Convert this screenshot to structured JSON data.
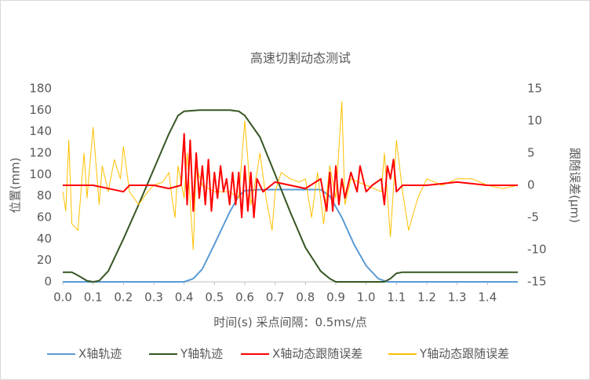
{
  "chart_data": {
    "type": "line",
    "title": "高速切割动态测试",
    "xlabel": "时间(s)    采点间隔：0.5ms/点",
    "ylabel": "位置(mm)",
    "y2label": "跟随误差(μm)",
    "xlim": [
      0,
      1.5
    ],
    "xticks": [
      {
        "value": 0,
        "label": "0.0"
      },
      0.1,
      0.2,
      0.3,
      0.4,
      0.5,
      0.6,
      0.7,
      0.8,
      0.9,
      {
        "value": 1,
        "label": "1.0"
      },
      1.1,
      1.2,
      1.3,
      1.4
    ],
    "ylim": [
      0,
      180
    ],
    "yticks": [
      0,
      20,
      40,
      60,
      80,
      100,
      120,
      140,
      160,
      180
    ],
    "y2lim": [
      -15,
      15
    ],
    "y2ticks": [
      -15,
      -10,
      -5,
      0,
      5,
      10,
      15
    ],
    "grid": false,
    "legend": "bottom",
    "series": [
      {
        "name": "X轴轨迹",
        "color": "#5b9bd5",
        "x": [
          0,
          0.4,
          0.43,
          0.46,
          0.5,
          0.55,
          0.58,
          0.6,
          0.65,
          0.85,
          0.88,
          0.92,
          0.96,
          1.0,
          1.04,
          1.07,
          1.5
        ],
        "values": [
          0,
          0,
          3,
          12,
          35,
          65,
          80,
          85,
          86,
          86,
          80,
          60,
          35,
          15,
          3,
          0,
          0
        ]
      },
      {
        "name": "Y轴轨迹",
        "color": "#375623",
        "x": [
          0,
          0.03,
          0.05,
          0.08,
          0.1,
          0.12,
          0.15,
          0.2,
          0.25,
          0.3,
          0.35,
          0.38,
          0.4,
          0.45,
          0.55,
          0.58,
          0.6,
          0.65,
          0.7,
          0.75,
          0.8,
          0.85,
          0.88,
          0.9,
          1.06,
          1.08,
          1.1,
          1.12,
          1.5
        ],
        "values": [
          9,
          9,
          6,
          1,
          0,
          1,
          10,
          40,
          72,
          105,
          138,
          155,
          159,
          160,
          160,
          159,
          155,
          135,
          100,
          65,
          32,
          10,
          3,
          0,
          0,
          3,
          8,
          9,
          9
        ]
      },
      {
        "name": "X轴动态跟随误差",
        "color": "#ff0000",
        "axis": "y2",
        "x": [
          0,
          0.1,
          0.2,
          0.22,
          0.3,
          0.35,
          0.39,
          0.4,
          0.41,
          0.42,
          0.43,
          0.44,
          0.45,
          0.46,
          0.47,
          0.48,
          0.49,
          0.5,
          0.51,
          0.52,
          0.53,
          0.54,
          0.55,
          0.56,
          0.57,
          0.58,
          0.59,
          0.6,
          0.61,
          0.62,
          0.63,
          0.64,
          0.66,
          0.7,
          0.75,
          0.8,
          0.85,
          0.87,
          0.88,
          0.89,
          0.9,
          0.91,
          0.92,
          0.93,
          0.95,
          0.97,
          0.98,
          1.0,
          1.02,
          1.05,
          1.06,
          1.07,
          1.08,
          1.09,
          1.1,
          1.12,
          1.2,
          1.3,
          1.4,
          1.5
        ],
        "values": [
          0,
          0,
          -1,
          0,
          0,
          -0.5,
          0,
          8,
          -3,
          7,
          -4,
          5,
          -2,
          3,
          -3,
          4,
          -4,
          2,
          -2,
          3,
          -1,
          1,
          -3,
          2,
          -3,
          2,
          -5,
          3,
          -4,
          2,
          -5,
          1,
          -1,
          0.5,
          0,
          -0.5,
          1,
          -4,
          2,
          -4,
          3,
          -3,
          1,
          -2,
          2,
          -1,
          3,
          -1,
          0,
          1,
          -3,
          3,
          1,
          4,
          -1,
          0,
          0,
          0.5,
          0,
          0
        ]
      },
      {
        "name": "Y轴动态跟随误差",
        "color": "#ffc000",
        "axis": "y2",
        "x": [
          0,
          0.01,
          0.02,
          0.03,
          0.05,
          0.07,
          0.08,
          0.1,
          0.12,
          0.13,
          0.15,
          0.17,
          0.19,
          0.2,
          0.22,
          0.25,
          0.28,
          0.3,
          0.33,
          0.35,
          0.36,
          0.37,
          0.38,
          0.4,
          0.41,
          0.43,
          0.44,
          0.46,
          0.5,
          0.55,
          0.58,
          0.6,
          0.61,
          0.62,
          0.64,
          0.65,
          0.67,
          0.69,
          0.7,
          0.72,
          0.75,
          0.78,
          0.8,
          0.82,
          0.84,
          0.86,
          0.88,
          0.9,
          0.92,
          0.93,
          0.95,
          1.0,
          1.05,
          1.06,
          1.08,
          1.1,
          1.12,
          1.14,
          1.17,
          1.2,
          1.25,
          1.3,
          1.35,
          1.4,
          1.45,
          1.5
        ],
        "values": [
          -1,
          -4,
          7,
          -6,
          -7,
          5,
          -2,
          9,
          -3,
          3,
          -1,
          4,
          1,
          6,
          -1,
          -3,
          -1,
          0,
          0.5,
          2,
          -2,
          -5,
          3,
          -2,
          5,
          -10,
          3,
          0,
          -1,
          -1,
          -2,
          10,
          4,
          -3,
          2,
          5,
          -2,
          -7,
          -1,
          2,
          1,
          0.5,
          1,
          -5,
          2,
          -6,
          3,
          -2,
          13,
          -3,
          1,
          0,
          -1,
          5,
          -8,
          7,
          -1,
          -7,
          -2,
          1,
          0,
          1,
          1,
          0,
          -0.5,
          0
        ]
      }
    ]
  }
}
